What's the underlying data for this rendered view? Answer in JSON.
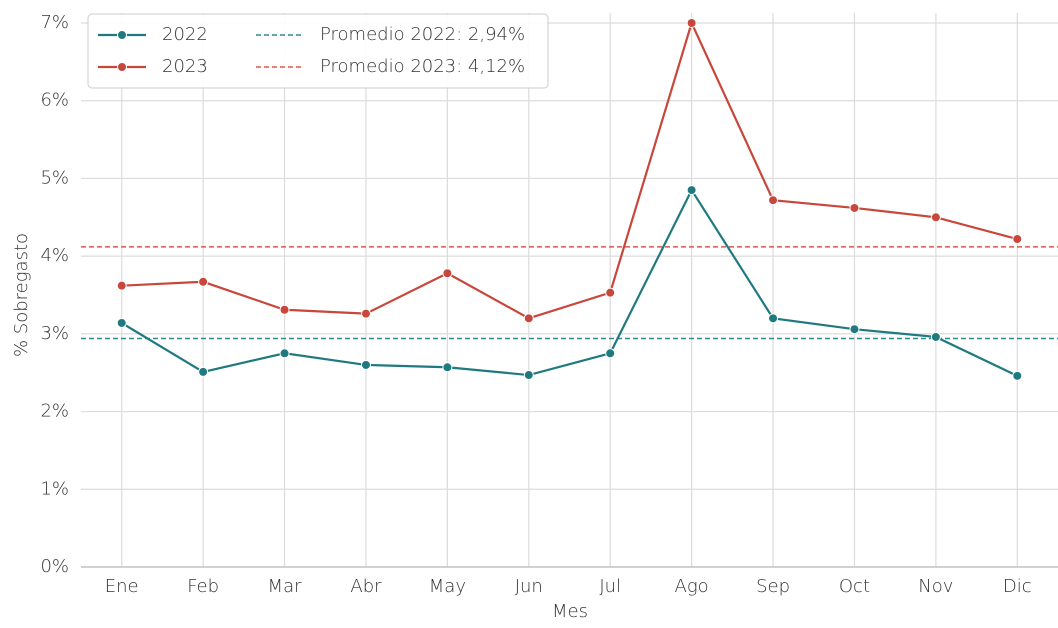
{
  "chart_data": {
    "type": "line",
    "xlabel": "Mes",
    "ylabel": "% Sobregasto",
    "categories": [
      "Ene",
      "Feb",
      "Mar",
      "Abr",
      "May",
      "Jun",
      "Jul",
      "Ago",
      "Sep",
      "Oct",
      "Nov",
      "Dic"
    ],
    "series": [
      {
        "name": "2022",
        "color": "#1f7a80",
        "values": [
          3.14,
          2.51,
          2.75,
          2.6,
          2.57,
          2.47,
          2.75,
          4.85,
          3.2,
          3.06,
          2.96,
          2.46
        ]
      },
      {
        "name": "2023",
        "color": "#c8473a",
        "values": [
          3.62,
          3.67,
          3.31,
          3.26,
          3.78,
          3.2,
          3.53,
          7.0,
          4.72,
          4.62,
          4.5,
          4.22
        ]
      }
    ],
    "hlines": [
      {
        "name": "Promedio 2022: 2,94%",
        "value": 2.94,
        "color": "#2f8a8f"
      },
      {
        "name": "Promedio 2023: 4,12%",
        "value": 4.12,
        "color": "#e0564a"
      }
    ],
    "ylim": [
      0,
      7
    ],
    "yticks": [
      {
        "value": 0,
        "label": "0%"
      },
      {
        "value": 1,
        "label": "1%"
      },
      {
        "value": 2,
        "label": "2%"
      },
      {
        "value": 3,
        "label": "3%"
      },
      {
        "value": 4,
        "label": "4%"
      },
      {
        "value": 5,
        "label": "5%"
      },
      {
        "value": 6,
        "label": "6%"
      },
      {
        "value": 7,
        "label": "7%"
      }
    ],
    "grid": true,
    "legend": "upper left"
  }
}
